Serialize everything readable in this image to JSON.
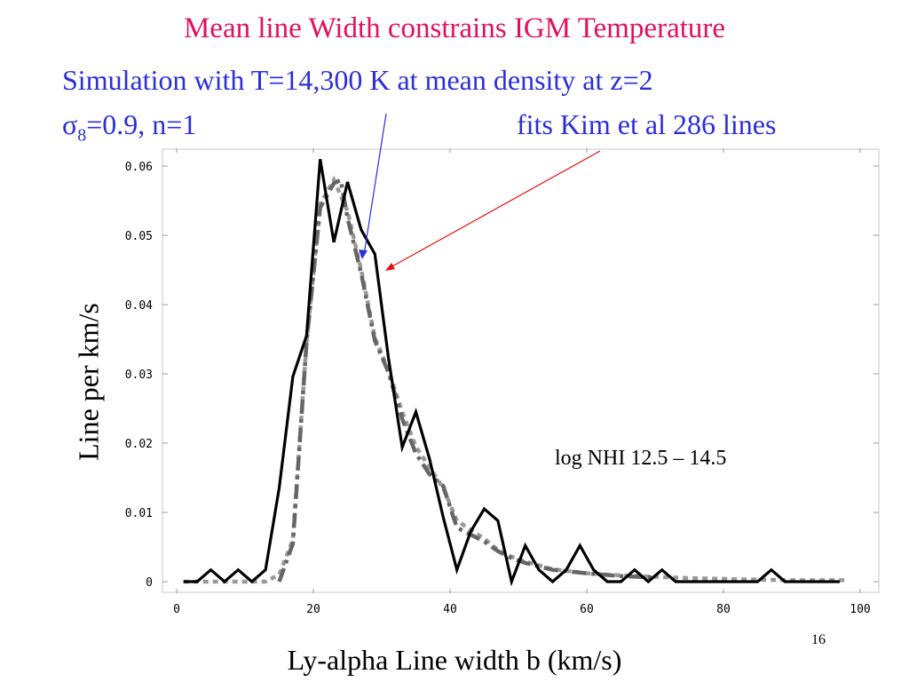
{
  "slide": {
    "title": "Mean line Width constrains IGM Temperature",
    "subtitle_line1": "Simulation with T=14,300 K at mean density at z=2",
    "sigma_symbol": "σ",
    "sigma_subscript": "8",
    "sigma_rest": "=0.9, n=1",
    "fits_text": "fits Kim et al 286 lines",
    "page_number": "16"
  },
  "chart_data": {
    "type": "line",
    "xlabel": "Ly-alpha Line width b (km/s)",
    "ylabel": "Line per km/s",
    "xlim": [
      0,
      100
    ],
    "ylim": [
      0,
      0.06
    ],
    "xticks": [
      0,
      20,
      40,
      60,
      80,
      100
    ],
    "yticks": [
      0,
      0.01,
      0.02,
      0.03,
      0.04,
      0.05,
      0.06
    ],
    "xtick_labels": [
      "0",
      "20",
      "40",
      "60",
      "80",
      "100"
    ],
    "ytick_labels": [
      "0",
      "0.01",
      "0.02",
      "0.03",
      "0.04",
      "0.05",
      "0.06"
    ],
    "grid": false,
    "annotation": "log NHI 12.5 – 14.5",
    "colors": {
      "data": "#000000",
      "dashdot": "#666666",
      "dotted": "#999999",
      "blue_arrow": "#2b2fd6",
      "red_arrow": "#e01010"
    },
    "series": [
      {
        "style": "solid",
        "x": [
          1,
          3,
          5,
          7,
          9,
          11,
          13,
          15,
          17,
          19,
          21,
          23,
          25,
          27,
          29,
          31,
          33,
          35,
          37,
          39,
          41,
          43,
          45,
          47,
          49,
          51,
          53,
          55,
          57,
          59,
          61,
          63,
          65,
          67,
          69,
          71,
          73,
          75,
          77,
          79,
          81,
          83,
          85,
          87,
          89,
          91,
          93,
          95,
          97
        ],
        "y": [
          0,
          0,
          0.0017,
          0,
          0.0017,
          0,
          0.0017,
          0.0135,
          0.0296,
          0.0355,
          0.061,
          0.049,
          0.0577,
          0.0508,
          0.0473,
          0.0322,
          0.0194,
          0.0245,
          0.0177,
          0.0093,
          0.0017,
          0.0072,
          0.0105,
          0.0088,
          0,
          0.0052,
          0.0017,
          0,
          0.0017,
          0.0052,
          0.0017,
          0,
          0,
          0.0017,
          0,
          0.0017,
          0,
          0,
          0,
          0,
          0,
          0,
          0,
          0.0017,
          0,
          0,
          0,
          0,
          0
        ]
      },
      {
        "style": "dashdot",
        "x": [
          15,
          17,
          19,
          21,
          23,
          24,
          25,
          27,
          29,
          31,
          33,
          35,
          37,
          39,
          41,
          43,
          45,
          47,
          49,
          51,
          55,
          60,
          65,
          70
        ],
        "y": [
          0,
          0.0055,
          0.0345,
          0.054,
          0.0575,
          0.058,
          0.0525,
          0.0445,
          0.0348,
          0.0302,
          0.0235,
          0.0185,
          0.0155,
          0.0138,
          0.0078,
          0.0068,
          0.0058,
          0.0044,
          0.0034,
          0.0027,
          0.0017,
          0.0012,
          0.0008,
          0.0006
        ]
      },
      {
        "style": "dotted",
        "x": [
          1,
          5,
          9,
          13,
          15,
          17,
          19,
          21,
          23,
          25,
          27,
          29,
          31,
          33,
          35,
          37,
          39,
          41,
          43,
          45,
          47,
          49,
          51,
          55,
          60,
          65,
          70,
          75,
          80,
          85,
          90,
          95,
          98
        ],
        "y": [
          0,
          0,
          0,
          0,
          0.001,
          0.006,
          0.0345,
          0.0545,
          0.058,
          0.0535,
          0.045,
          0.0352,
          0.0305,
          0.0245,
          0.0195,
          0.0165,
          0.0135,
          0.0088,
          0.0075,
          0.0062,
          0.0046,
          0.0036,
          0.0029,
          0.0018,
          0.0012,
          0.0009,
          0.0007,
          0.0005,
          0.0004,
          0.0003,
          0.0002,
          0.0002,
          0.0002
        ]
      }
    ]
  }
}
